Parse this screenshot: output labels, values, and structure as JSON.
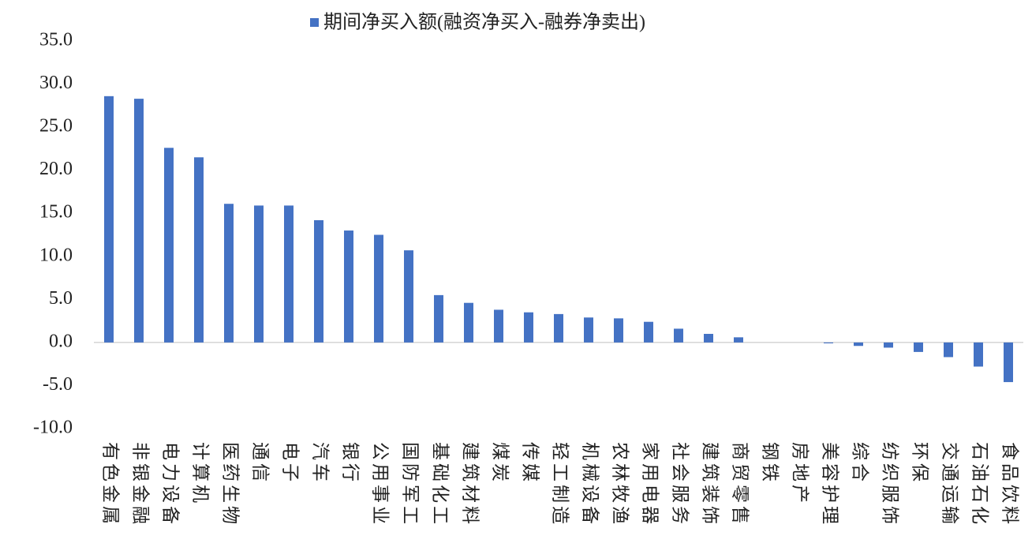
{
  "chart_data": {
    "type": "bar",
    "categories": [
      "有色金属",
      "非银金融",
      "电力设备",
      "计算机",
      "医药生物",
      "通信",
      "电子",
      "汽车",
      "银行",
      "公用事业",
      "国防军工",
      "基础化工",
      "建筑材料",
      "煤炭",
      "传媒",
      "轻工制造",
      "机械设备",
      "农林牧渔",
      "家用电器",
      "社会服务",
      "建筑装饰",
      "商贸零售",
      "钢铁",
      "房地产",
      "美容护理",
      "综合",
      "纺织服饰",
      "环保",
      "交通运输",
      "石油石化",
      "食品饮料"
    ],
    "series": [
      {
        "name": "期间净买入额(融资净买入-融券净卖出)",
        "color": "#4472c4",
        "values": [
          28.6,
          28.3,
          22.6,
          21.5,
          16.1,
          15.9,
          15.9,
          14.2,
          13.0,
          12.5,
          10.7,
          5.5,
          4.6,
          3.8,
          3.5,
          3.3,
          2.9,
          2.8,
          2.4,
          1.6,
          1.0,
          0.6,
          0.0,
          0.0,
          -0.1,
          -0.4,
          -0.6,
          -1.1,
          -1.7,
          -2.8,
          -4.6
        ]
      }
    ],
    "ylim": [
      -10,
      35
    ],
    "yticks": [
      {
        "value": -10,
        "label": "-10.0"
      },
      {
        "value": -5,
        "label": "-5.0"
      },
      {
        "value": 0,
        "label": "0.0"
      },
      {
        "value": 5,
        "label": "5.0"
      },
      {
        "value": 10,
        "label": "10.0"
      },
      {
        "value": 15,
        "label": "15.0"
      },
      {
        "value": 20,
        "label": "20.0"
      },
      {
        "value": 25,
        "label": "25.0"
      },
      {
        "value": 30,
        "label": "30.0"
      },
      {
        "value": 35,
        "label": "35.0"
      }
    ],
    "legend": "top"
  }
}
